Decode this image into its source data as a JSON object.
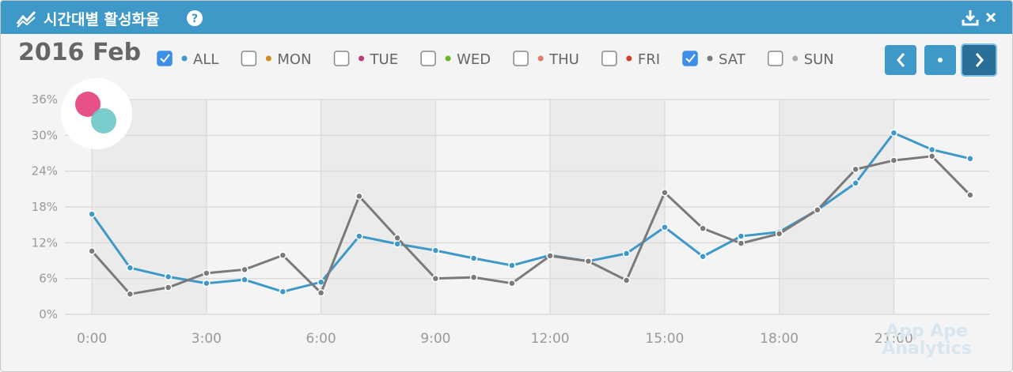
{
  "header": {
    "title": "시간대별 활성화율"
  },
  "period": "2016 Feb",
  "watermark": [
    "App Ape",
    "Analytics"
  ],
  "chart_data": {
    "type": "line",
    "x": [
      0,
      1,
      2,
      3,
      4,
      5,
      6,
      7,
      8,
      9,
      10,
      11,
      12,
      13,
      14,
      15,
      16,
      17,
      18,
      19,
      20,
      21,
      22,
      23
    ],
    "xlim": [
      -0.5,
      23.5
    ],
    "xticks": [
      {
        "value": 0,
        "label": "0:00"
      },
      {
        "value": 3,
        "label": "3:00"
      },
      {
        "value": 6,
        "label": "6:00"
      },
      {
        "value": 9,
        "label": "9:00"
      },
      {
        "value": 12,
        "label": "12:00"
      },
      {
        "value": 15,
        "label": "15:00"
      },
      {
        "value": 18,
        "label": "18:00"
      },
      {
        "value": 21,
        "label": "21:00"
      }
    ],
    "ylim": [
      0,
      36
    ],
    "yticks": [
      {
        "value": 0,
        "label": "0%"
      },
      {
        "value": 6,
        "label": "6%"
      },
      {
        "value": 12,
        "label": "12%"
      },
      {
        "value": 18,
        "label": "18%"
      },
      {
        "value": 24,
        "label": "24%"
      },
      {
        "value": 30,
        "label": "30%"
      },
      {
        "value": 36,
        "label": "36%"
      }
    ],
    "grid": true,
    "series": [
      {
        "name": "ALL",
        "color": "#3e98c8",
        "checked": true,
        "values": [
          16.8,
          7.8,
          6.3,
          5.2,
          5.8,
          3.8,
          5.4,
          13.1,
          11.8,
          10.7,
          9.4,
          8.2,
          9.9,
          8.9,
          10.2,
          14.6,
          9.7,
          13.1,
          13.8,
          17.5,
          22,
          30.4,
          27.6,
          26.1
        ]
      },
      {
        "name": "MON",
        "color": "#d4891c",
        "checked": false
      },
      {
        "name": "TUE",
        "color": "#c0397a",
        "checked": false
      },
      {
        "name": "WED",
        "color": "#6ab52a",
        "checked": false
      },
      {
        "name": "THU",
        "color": "#e07b6a",
        "checked": false
      },
      {
        "name": "FRI",
        "color": "#d0402a",
        "checked": false
      },
      {
        "name": "SAT",
        "color": "#7a7a7a",
        "checked": true,
        "values": [
          10.6,
          3.4,
          4.5,
          6.9,
          7.5,
          9.9,
          3.6,
          19.8,
          12.8,
          6,
          6.2,
          5.2,
          9.8,
          8.9,
          5.7,
          20.4,
          14.4,
          11.9,
          13.5,
          17.5,
          24.3,
          25.8,
          26.5,
          20
        ]
      },
      {
        "name": "SUN",
        "color": "#aaaaaa",
        "checked": false
      }
    ]
  }
}
